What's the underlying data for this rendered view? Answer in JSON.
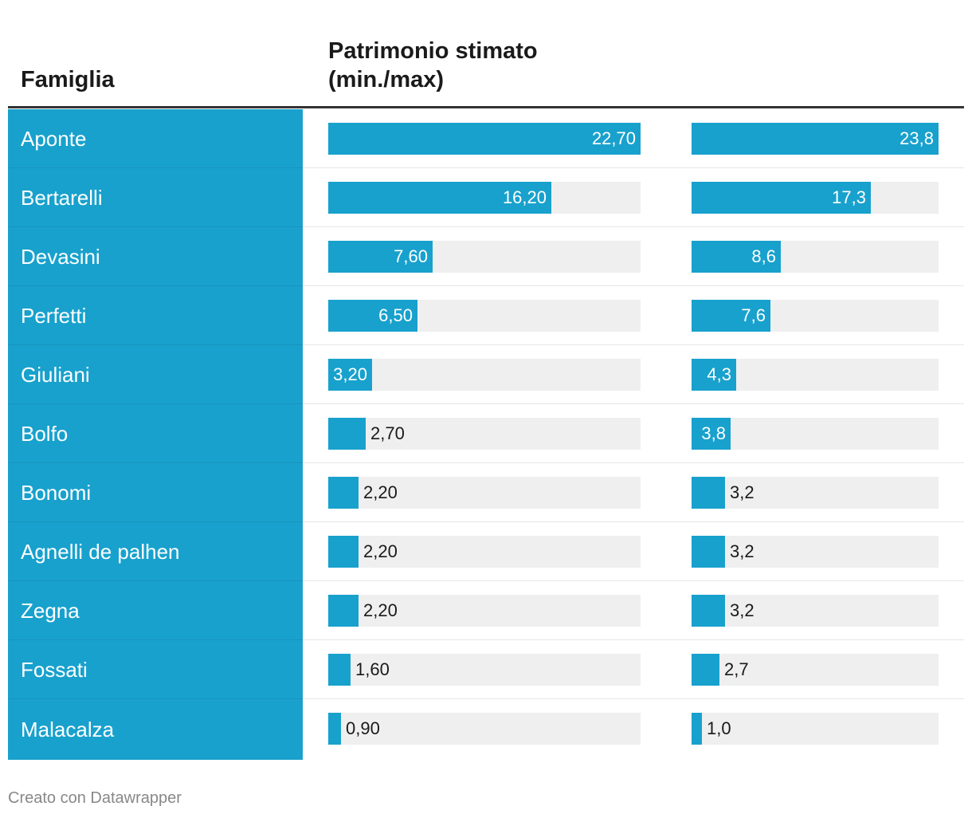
{
  "header": {
    "family_label": "Famiglia",
    "wealth_label_line1": "Patrimonio stimato",
    "wealth_label_line2": "(min./max)"
  },
  "footer": {
    "credit": "Creato con Datawrapper"
  },
  "colors": {
    "bar": "#18a1cd",
    "track": "#efefef"
  },
  "chart_data": {
    "type": "bar",
    "categories": [
      "Aponte",
      "Bertarelli",
      "Devasini",
      "Perfetti",
      "Giuliani",
      "Bolfo",
      "Bonomi",
      "Agnelli de palhen",
      "Zegna",
      "Fossati",
      "Malacalza"
    ],
    "series": [
      {
        "values": [
          22.7,
          16.2,
          7.6,
          6.5,
          3.2,
          2.7,
          2.2,
          2.2,
          2.2,
          1.6,
          0.9
        ],
        "labels": [
          "22,70",
          "16,20",
          "7,60",
          "6,50",
          "3,20",
          "2,70",
          "2,20",
          "2,20",
          "2,20",
          "1,60",
          "0,90"
        ],
        "xlim": [
          0,
          22.7
        ]
      },
      {
        "values": [
          23.8,
          17.3,
          8.6,
          7.6,
          4.3,
          3.8,
          3.2,
          3.2,
          3.2,
          2.7,
          1.0
        ],
        "labels": [
          "23,8",
          "17,3",
          "8,6",
          "7,6",
          "4,3",
          "3,8",
          "3,2",
          "3,2",
          "3,2",
          "2,7",
          "1,0"
        ],
        "xlim": [
          0,
          23.8
        ]
      }
    ],
    "xlabel": "",
    "ylabel": "Famiglia",
    "title": ""
  }
}
